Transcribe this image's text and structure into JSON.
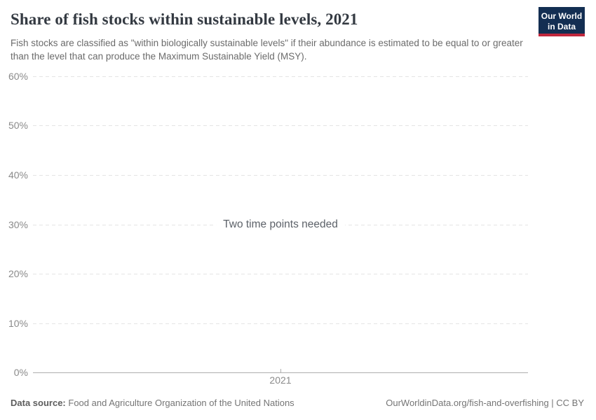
{
  "header": {
    "title": "Share of fish stocks within sustainable levels, 2021",
    "logo": {
      "line1": "Our World",
      "line2": "in Data"
    }
  },
  "subtitle": "Fish stocks are classified as \"within biologically sustainable levels\" if their abundance is estimated to be equal to or greater than the level that can produce the Maximum Sustainable Yield (MSY).",
  "chart_data": {
    "type": "line",
    "title": "Share of fish stocks within sustainable levels, 2021",
    "series": [],
    "message": "Two time points needed",
    "x_ticks": [
      "2021"
    ],
    "y_ticks": [
      "0%",
      "10%",
      "20%",
      "30%",
      "40%",
      "50%",
      "60%"
    ],
    "ylim": [
      0,
      60
    ],
    "xlabel": "",
    "ylabel": "",
    "grid": "horizontal-dashed",
    "legend": "none"
  },
  "footer": {
    "datasource_label": "Data source:",
    "datasource": "Food and Agriculture Organization of the United Nations",
    "right": "OurWorldinData.org/fish-and-overfishing | CC BY"
  },
  "colors": {
    "logo_bg": "#132e52",
    "logo_red": "#c0273d",
    "title_text": "#343a42",
    "subtitle_text": "#6b6b6b",
    "tick_label": "#8a8a8a",
    "gridline": "#e4e4e4",
    "axis_line": "#afafaf",
    "message_text": "#5d6269"
  }
}
